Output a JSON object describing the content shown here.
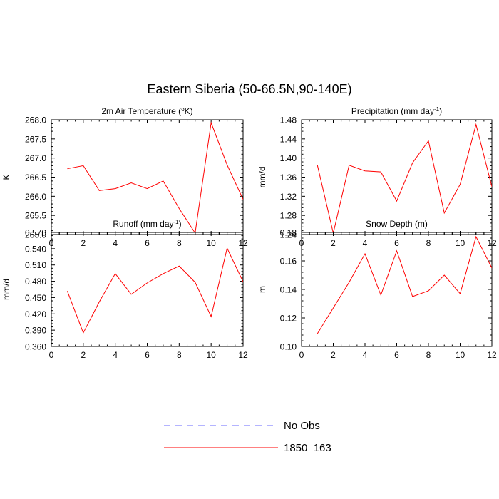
{
  "figure": {
    "title": "Eastern Siberia (50-66.5N,90-140E)"
  },
  "legend": {
    "placement": "bottom-center",
    "entries": [
      {
        "label": "No Obs",
        "color": "#6a6aff",
        "dash": true
      },
      {
        "label": "1850_163",
        "color": "#ff0000",
        "dash": false
      }
    ]
  },
  "chart_data": [
    {
      "type": "line",
      "title": "2m Air Temperature (°K)",
      "xlabel": "",
      "ylabel": "K",
      "xlim": [
        0,
        12
      ],
      "xticks": [
        0,
        2,
        4,
        6,
        8,
        10,
        12
      ],
      "ylim": [
        265.0,
        268.0
      ],
      "yticks": [
        265.0,
        265.5,
        266.0,
        266.5,
        267.0,
        267.5,
        268.0
      ],
      "ytick_labels": [
        "265.0",
        "265.5",
        "266.0",
        "266.5",
        "267.0",
        "267.5",
        "268.0"
      ],
      "x": [
        1,
        2,
        3,
        4,
        5,
        6,
        7,
        8,
        9,
        10,
        11,
        12
      ],
      "series": [
        {
          "name": "1850_163",
          "color": "#ff0000",
          "values": [
            266.72,
            266.8,
            266.15,
            266.2,
            266.35,
            266.2,
            266.4,
            265.68,
            265.04,
            267.92,
            266.82,
            265.92
          ]
        }
      ]
    },
    {
      "type": "line",
      "title": "Precipitation (mm day-1)",
      "xlabel": "",
      "ylabel": "mm/d",
      "xlim": [
        0,
        12
      ],
      "xticks": [
        0,
        2,
        4,
        6,
        8,
        10,
        12
      ],
      "ylim": [
        1.24,
        1.48
      ],
      "yticks": [
        1.24,
        1.28,
        1.32,
        1.36,
        1.4,
        1.44,
        1.48
      ],
      "ytick_labels": [
        "1.24",
        "1.28",
        "1.32",
        "1.36",
        "1.40",
        "1.44",
        "1.48"
      ],
      "x": [
        1,
        2,
        3,
        4,
        5,
        6,
        7,
        8,
        9,
        10,
        11,
        12
      ],
      "series": [
        {
          "name": "1850_163",
          "color": "#ff0000",
          "values": [
            1.385,
            1.243,
            1.385,
            1.373,
            1.371,
            1.31,
            1.39,
            1.436,
            1.285,
            1.345,
            1.47,
            1.34
          ]
        }
      ]
    },
    {
      "type": "line",
      "title": "Runoff (mm day-1)",
      "xlabel": "",
      "ylabel": "mm/d",
      "xlim": [
        0,
        12
      ],
      "xticks": [
        0,
        2,
        4,
        6,
        8,
        10,
        12
      ],
      "ylim": [
        0.36,
        0.57
      ],
      "yticks": [
        0.36,
        0.39,
        0.42,
        0.45,
        0.48,
        0.51,
        0.54,
        0.57
      ],
      "ytick_labels": [
        "0.360",
        "0.390",
        "0.420",
        "0.450",
        "0.480",
        "0.510",
        "0.540",
        "0.570"
      ],
      "x": [
        1,
        2,
        3,
        4,
        5,
        6,
        7,
        8,
        9,
        10,
        11,
        12
      ],
      "series": [
        {
          "name": "1850_163",
          "color": "#ff0000",
          "values": [
            0.462,
            0.385,
            0.442,
            0.494,
            0.456,
            0.477,
            0.494,
            0.508,
            0.478,
            0.415,
            0.541,
            0.479
          ]
        }
      ]
    },
    {
      "type": "line",
      "title": "Snow Depth (m)",
      "xlabel": "",
      "ylabel": "m",
      "xlim": [
        0,
        12
      ],
      "xticks": [
        0,
        2,
        4,
        6,
        8,
        10,
        12
      ],
      "ylim": [
        0.1,
        0.18
      ],
      "yticks": [
        0.1,
        0.12,
        0.14,
        0.16,
        0.18
      ],
      "ytick_labels": [
        "0.10",
        "0.12",
        "0.14",
        "0.16",
        "0.18"
      ],
      "x": [
        1,
        2,
        3,
        4,
        5,
        6,
        7,
        8,
        9,
        10,
        11,
        12
      ],
      "series": [
        {
          "name": "1850_163",
          "color": "#ff0000",
          "values": [
            0.109,
            0.127,
            0.145,
            0.165,
            0.136,
            0.167,
            0.135,
            0.139,
            0.15,
            0.137,
            0.177,
            0.155
          ]
        }
      ]
    }
  ]
}
